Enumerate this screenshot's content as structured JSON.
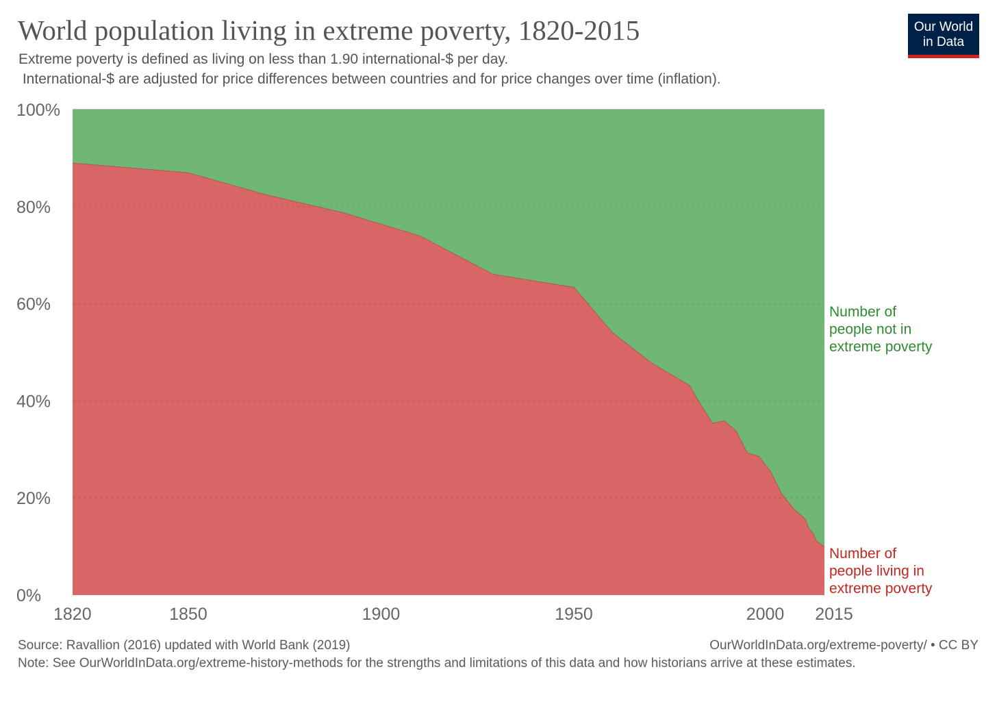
{
  "title": "World population living in extreme poverty, 1820-2015",
  "subtitle": "Extreme poverty is defined as living on less than 1.90 international-$ per day.\n International-$ are adjusted for price differences between countries and for price changes over time (inflation).",
  "logo": {
    "line1": "Our World",
    "line2": "in Data"
  },
  "footer": {
    "source": "Source: Ravallion (2016) updated with World Bank (2019)",
    "url": "OurWorldInData.org/extreme-poverty/ • CC BY",
    "note": "Note: See OurWorldInData.org/extreme-history-methods for the strengths and limitations of this data and how historians arrive at these estimates."
  },
  "colors": {
    "poverty": "#d96666",
    "not_poverty": "#70b776",
    "poverty_label": "#c3261e",
    "not_poverty_label": "#2f8a30",
    "axis_text": "#666666",
    "grid": "#c8c8c8",
    "logo_bg": "#002147",
    "logo_accent": "#ce261e"
  },
  "chart_data": {
    "type": "area",
    "stacking": "percent",
    "xlim": [
      1820,
      2015
    ],
    "ylim": [
      0,
      100
    ],
    "x_ticks": [
      "1820",
      "1850",
      "1900",
      "1950",
      "2000",
      "2015"
    ],
    "y_ticks": [
      "0%",
      "20%",
      "40%",
      "60%",
      "80%",
      "100%"
    ],
    "grid": "horizontal dashed",
    "series": [
      {
        "name": "Number of people living in extreme poverty",
        "color": "#d96666",
        "points": [
          [
            1820,
            89.0
          ],
          [
            1850,
            87.0
          ],
          [
            1870,
            82.5
          ],
          [
            1890,
            78.8
          ],
          [
            1910,
            74.0
          ],
          [
            1929,
            66.1
          ],
          [
            1950,
            63.4
          ],
          [
            1960,
            54.1
          ],
          [
            1970,
            47.9
          ],
          [
            1980,
            43.2
          ],
          [
            1983,
            39.1
          ],
          [
            1986,
            35.4
          ],
          [
            1989,
            35.9
          ],
          [
            1992,
            33.9
          ],
          [
            1995,
            29.3
          ],
          [
            1998,
            28.6
          ],
          [
            2001,
            25.5
          ],
          [
            2004,
            20.7
          ],
          [
            2007,
            17.8
          ],
          [
            2010,
            15.7
          ],
          [
            2011,
            13.7
          ],
          [
            2012,
            12.8
          ],
          [
            2013,
            11.1
          ],
          [
            2015,
            10.0
          ]
        ]
      },
      {
        "name": "Number of people not in extreme poverty",
        "color": "#70b776"
      }
    ],
    "labels": {
      "not_poverty": [
        "Number of",
        "people not in",
        "extreme poverty"
      ],
      "poverty": [
        "Number of",
        "people living in",
        "extreme poverty"
      ]
    }
  }
}
